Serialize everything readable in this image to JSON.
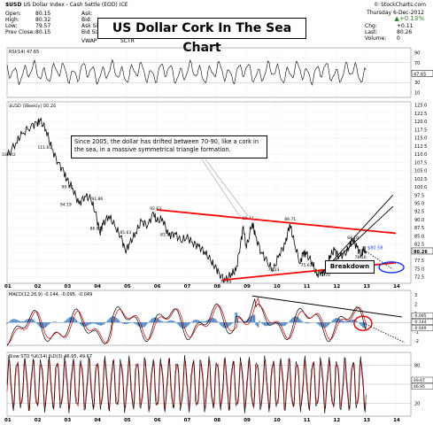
{
  "header": {
    "symbol": "$USD",
    "name": "US Dollar Index - Cash Settle (EOD)",
    "exchange": "ICE",
    "brand": "© StockCharts.com",
    "date": "Thursday 6-Dec-2012",
    "quote_left": [
      {
        "label": "Open",
        "value": "80.15"
      },
      {
        "label": "High",
        "value": "80.32"
      },
      {
        "label": "Low",
        "value": "79.57"
      },
      {
        "label": "Prev Close",
        "value": "80.15"
      }
    ],
    "quote_mid": [
      {
        "label": "Ask",
        "value": ""
      },
      {
        "label": "Bid",
        "value": ""
      },
      {
        "label": "Ask Size",
        "value": ""
      },
      {
        "label": "Bid Size",
        "value": ""
      }
    ],
    "vwap_label": "VWAP",
    "sctr_label": "SCTR",
    "change_pct": "+0.13%",
    "quote_right": [
      {
        "label": "Chg",
        "value": "+0.11"
      },
      {
        "label": "Last",
        "value": "80.26"
      },
      {
        "label": "Volume",
        "value": "0"
      }
    ]
  },
  "title": "US Dollar Cork In The Sea Chart",
  "annotation": "Since 2005, the dollar has drifted between 70-90, like a cork in the sea, in a massive symmetrical triangle formation.",
  "breakdown_label": "Breakdown",
  "colors": {
    "price": "#000000",
    "trend": "#ff0000",
    "macd_fast": "#000000",
    "macd_slow": "#cc0000",
    "hist": "#4a86c8",
    "sto_k": "#000000",
    "sto_d": "#cc0000",
    "ellipse": "#1e3cff"
  },
  "rsi": {
    "label": "RSI(14) 47.65",
    "ticks": [
      "90",
      "70",
      "50",
      "30",
      "10"
    ],
    "value_tag": "47.65"
  },
  "macd": {
    "label": "MACD(12,26,9) -0.144, -0.095, -0.049",
    "ticks": [
      "3",
      "2",
      "1",
      "0",
      "-1",
      "-2"
    ],
    "value_tags": [
      "-0.095",
      "-0.144",
      "-0.049"
    ]
  },
  "sto": {
    "label": "Slow STO %K(14) %D(3) 46.95, 49.67",
    "ticks": [
      "80",
      "50",
      "20"
    ],
    "value_tags": [
      "49.67",
      "46.95"
    ]
  },
  "x_years": [
    "01",
    "02",
    "03",
    "04",
    "05",
    "06",
    "07",
    "08",
    "09",
    "10",
    "11",
    "12",
    "13",
    "14"
  ],
  "chart_data": {
    "type": "line",
    "title": "US Dollar Cork In The Sea Chart",
    "series_label": "$USD (Weekly) 80.26",
    "y_ticks": [
      "125.0",
      "122.5",
      "120.0",
      "117.5",
      "115.0",
      "112.5",
      "110.0",
      "107.5",
      "105.0",
      "102.5",
      "100.0",
      "97.5",
      "95.0",
      "92.5",
      "90.0",
      "87.5",
      "85.0",
      "82.5",
      "80.0",
      "77.5",
      "75.0",
      "72.5"
    ],
    "ylim": [
      70.5,
      126
    ],
    "xlim": [
      2001.0,
      2014.5
    ],
    "last_value_tag": "80.26",
    "target_tag": "$80.58",
    "price_points": [
      [
        2001.0,
        109.42
      ],
      [
        2001.3,
        113.5
      ],
      [
        2001.5,
        116.2
      ],
      [
        2001.8,
        118.5
      ],
      [
        2002.0,
        119.5
      ],
      [
        2002.1,
        120.3
      ],
      [
        2002.3,
        117.5
      ],
      [
        2002.5,
        111.6
      ],
      [
        2002.7,
        107.5
      ],
      [
        2002.9,
        104.5
      ],
      [
        2003.0,
        102.0
      ],
      [
        2003.2,
        99.5
      ],
      [
        2003.4,
        94.7
      ],
      [
        2003.6,
        97.2
      ],
      [
        2003.8,
        96.3
      ],
      [
        2003.95,
        92.3
      ],
      [
        2004.1,
        86.0
      ],
      [
        2004.2,
        88.5
      ],
      [
        2004.4,
        91.2
      ],
      [
        2004.6,
        88.0
      ],
      [
        2004.8,
        85.0
      ],
      [
        2004.95,
        80.5
      ],
      [
        2005.1,
        82.6
      ],
      [
        2005.3,
        86.0
      ],
      [
        2005.5,
        89.5
      ],
      [
        2005.7,
        88.2
      ],
      [
        2005.9,
        92.1
      ],
      [
        2006.0,
        89.4
      ],
      [
        2006.2,
        90.3
      ],
      [
        2006.4,
        85.0
      ],
      [
        2006.6,
        85.9
      ],
      [
        2006.8,
        83.5
      ],
      [
        2007.0,
        84.5
      ],
      [
        2007.2,
        83.0
      ],
      [
        2007.4,
        81.8
      ],
      [
        2007.6,
        80.2
      ],
      [
        2007.8,
        77.5
      ],
      [
        2007.95,
        75.6
      ],
      [
        2008.1,
        73.5
      ],
      [
        2008.3,
        71.3
      ],
      [
        2008.5,
        73.5
      ],
      [
        2008.65,
        74.3
      ],
      [
        2008.8,
        82.3
      ],
      [
        2008.9,
        87.9
      ],
      [
        2009.0,
        81.1
      ],
      [
        2009.2,
        89.1
      ],
      [
        2009.3,
        85.0
      ],
      [
        2009.5,
        80.0
      ],
      [
        2009.7,
        77.0
      ],
      [
        2009.9,
        74.3
      ],
      [
        2010.1,
        79.5
      ],
      [
        2010.3,
        82.5
      ],
      [
        2010.45,
        88.7
      ],
      [
        2010.6,
        83.0
      ],
      [
        2010.8,
        76.5
      ],
      [
        2010.9,
        80.0
      ],
      [
        2011.0,
        79.5
      ],
      [
        2011.2,
        77.0
      ],
      [
        2011.35,
        73.0
      ],
      [
        2011.5,
        74.3
      ],
      [
        2011.6,
        73.7
      ],
      [
        2011.7,
        75.6
      ],
      [
        2011.8,
        79.0
      ],
      [
        2011.95,
        80.7
      ],
      [
        2012.1,
        78.8
      ],
      [
        2012.3,
        79.5
      ],
      [
        2012.45,
        81.8
      ],
      [
        2012.55,
        84.1
      ],
      [
        2012.7,
        81.5
      ],
      [
        2012.85,
        79.2
      ],
      [
        2012.92,
        80.9
      ],
      [
        2013.0,
        80.26
      ]
    ],
    "price_labels": [
      [
        2001.0,
        109.42,
        "109.42"
      ],
      [
        2002.2,
        111.6,
        "111.61"
      ],
      [
        2003.0,
        99.62,
        "99.62"
      ],
      [
        2002.95,
        94.19,
        "94.19"
      ],
      [
        2004.0,
        96.0,
        "91.86"
      ],
      [
        2003.95,
        86.82,
        "86.82"
      ],
      [
        2004.95,
        85.63,
        "85.63"
      ],
      [
        2005.95,
        93.0,
        "92.63"
      ],
      [
        2006.3,
        85.0,
        "83.75"
      ],
      [
        2009.05,
        90.0,
        "89.11"
      ],
      [
        2010.45,
        89.71,
        "89.71"
      ],
      [
        2009.9,
        74.23,
        "74.23"
      ],
      [
        2011.0,
        75.63,
        "75.63"
      ],
      [
        2011.6,
        72.7,
        "72.70"
      ],
      [
        2008.3,
        70.69,
        "70.69"
      ],
      [
        2012.55,
        84.1,
        "84.10"
      ],
      [
        2012.8,
        78.1,
        "78.10"
      ]
    ],
    "trendlines": [
      {
        "from": [
          2006.0,
          93.0
        ],
        "to": [
          2014.0,
          85.8
        ]
      },
      {
        "from": [
          2008.2,
          71.5
        ],
        "to": [
          2014.0,
          76.8
        ]
      },
      {
        "from": [
          2011.5,
          73.5
        ],
        "to": [
          2013.9,
          97.5
        ]
      },
      {
        "from": [
          2011.5,
          73.5
        ],
        "to": [
          2013.9,
          94.0
        ]
      }
    ]
  }
}
